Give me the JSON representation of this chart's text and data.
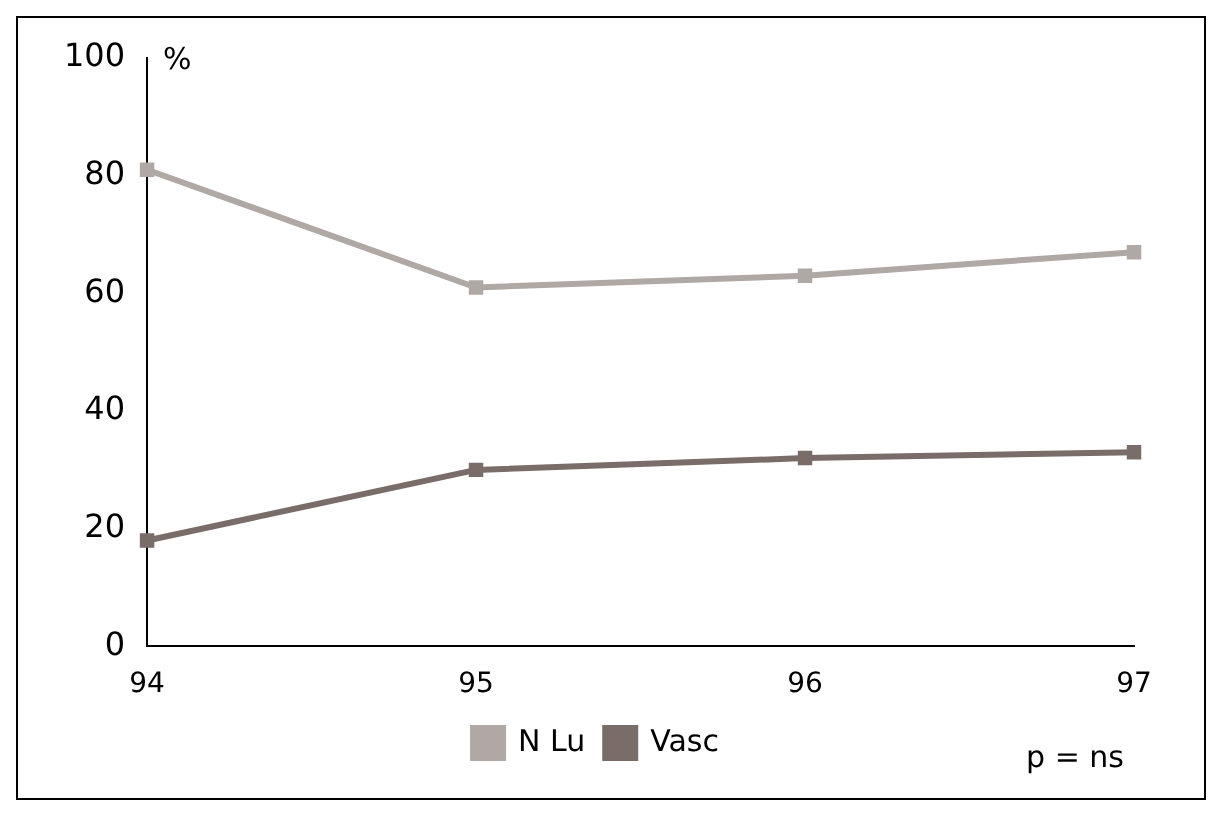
{
  "chart_data": {
    "type": "line",
    "ylabel": "%",
    "categories": [
      "94",
      "95",
      "96",
      "97"
    ],
    "series": [
      {
        "name": "N Lu",
        "color": "#b0a8a4",
        "values": [
          81,
          61,
          63,
          67
        ]
      },
      {
        "name": "Vasc",
        "color": "#7a6c68",
        "values": [
          18,
          30,
          32,
          33
        ]
      }
    ],
    "ylim": [
      0,
      100
    ],
    "yticks": [
      0,
      20,
      40,
      60,
      80,
      100
    ],
    "grid": false,
    "legend": "bottom",
    "marker": "square",
    "line_style": "solid",
    "annotations": [
      "p = ns"
    ]
  }
}
